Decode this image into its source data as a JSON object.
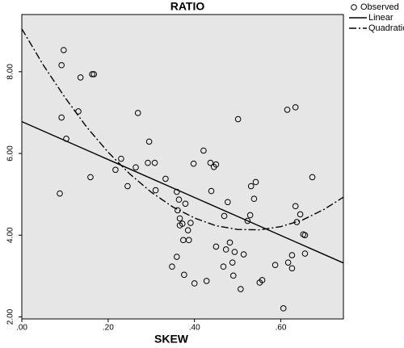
{
  "chart_data": {
    "type": "scatter",
    "title": "RATIO",
    "x_label": "SKEW",
    "xlim": [
      0,
      0.745
    ],
    "ylim": [
      1.95,
      9.4
    ],
    "xticks": [
      {
        "value": 0,
        "label": ".00"
      },
      {
        "value": 0.2,
        "label": ".20"
      },
      {
        "value": 0.4,
        "label": ".40"
      },
      {
        "value": 0.6,
        "label": ".60"
      }
    ],
    "yticks": [
      {
        "value": 2,
        "label": "2.00"
      },
      {
        "value": 4,
        "label": "4.00"
      },
      {
        "value": 6,
        "label": "6.00"
      },
      {
        "value": 8,
        "label": "8.00"
      }
    ],
    "legend": "outside-right",
    "series": [
      {
        "name": "Observed",
        "kind": "scatter",
        "color": "#000000",
        "x": [
          0.097,
          0.092,
          0.136,
          0.163,
          0.167,
          0.131,
          0.092,
          0.103,
          0.088,
          0.159,
          0.23,
          0.217,
          0.245,
          0.269,
          0.264,
          0.295,
          0.292,
          0.308,
          0.31,
          0.333,
          0.359,
          0.361,
          0.364,
          0.379,
          0.366,
          0.372,
          0.366,
          0.391,
          0.385,
          0.374,
          0.387,
          0.348,
          0.359,
          0.376,
          0.4,
          0.398,
          0.439,
          0.428,
          0.421,
          0.437,
          0.445,
          0.45,
          0.45,
          0.477,
          0.469,
          0.473,
          0.482,
          0.467,
          0.49,
          0.488,
          0.493,
          0.501,
          0.507,
          0.514,
          0.523,
          0.529,
          0.538,
          0.542,
          0.531,
          0.551,
          0.557,
          0.587,
          0.606,
          0.617,
          0.626,
          0.626,
          0.615,
          0.634,
          0.634,
          0.637,
          0.645,
          0.652,
          0.656,
          0.656,
          0.673
        ],
        "values": [
          8.53,
          8.16,
          7.86,
          7.94,
          7.94,
          7.03,
          6.88,
          6.36,
          5.02,
          5.42,
          5.87,
          5.6,
          5.2,
          6.99,
          5.66,
          6.29,
          5.77,
          5.77,
          5.1,
          5.38,
          5.06,
          4.61,
          4.87,
          4.77,
          4.41,
          4.28,
          4.24,
          4.3,
          4.12,
          3.88,
          3.88,
          3.23,
          3.47,
          3.03,
          2.82,
          5.75,
          5.08,
          2.88,
          6.07,
          5.77,
          5.67,
          5.73,
          3.72,
          4.81,
          4.47,
          3.65,
          3.82,
          3.23,
          3.01,
          3.33,
          3.59,
          6.84,
          2.68,
          3.53,
          4.35,
          4.49,
          4.89,
          5.3,
          5.2,
          2.84,
          2.9,
          3.27,
          2.21,
          3.33,
          3.51,
          3.19,
          7.07,
          7.13,
          4.71,
          4.32,
          4.51,
          4.02,
          4.0,
          3.55,
          5.42
        ]
      },
      {
        "name": "Linear",
        "kind": "line",
        "line_style": "solid",
        "color": "#000000",
        "x": [
          0,
          0.745
        ],
        "values": [
          6.78,
          3.32
        ]
      },
      {
        "name": "Quadratic",
        "kind": "line",
        "line_style": "dashdot",
        "color": "#000000",
        "x": [
          0,
          0.05,
          0.1,
          0.15,
          0.2,
          0.25,
          0.3,
          0.35,
          0.4,
          0.45,
          0.5,
          0.55,
          0.6,
          0.65,
          0.7,
          0.745
        ],
        "values": [
          9.05,
          8.16,
          7.37,
          6.65,
          6.03,
          5.5,
          5.05,
          4.69,
          4.42,
          4.23,
          4.14,
          4.13,
          4.21,
          4.37,
          4.63,
          4.93
        ]
      }
    ]
  }
}
